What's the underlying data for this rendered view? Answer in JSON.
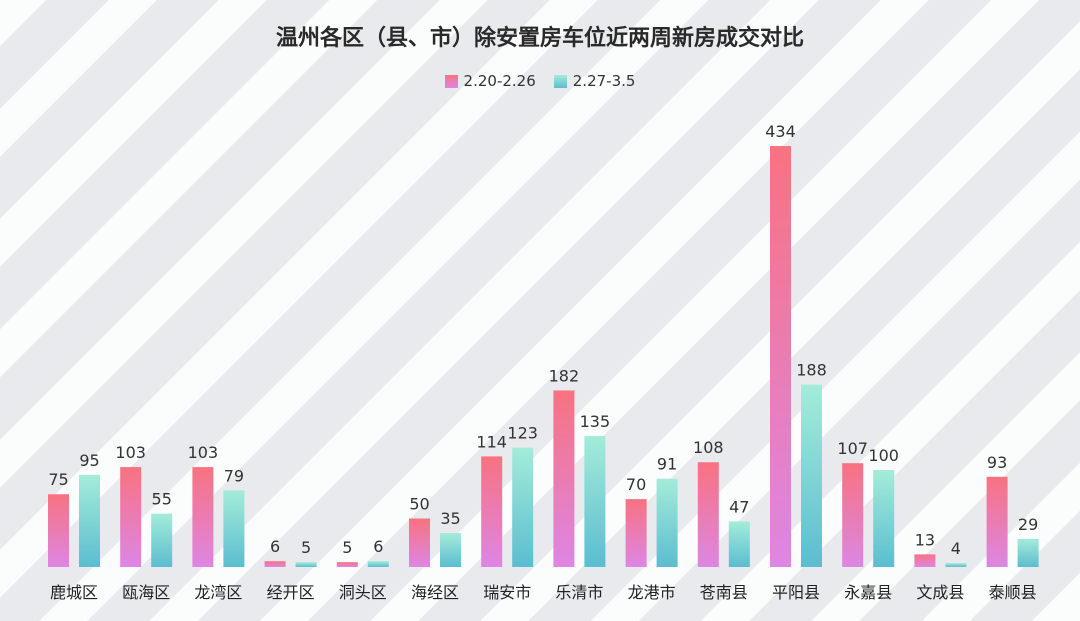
{
  "chart_data": {
    "type": "bar",
    "title": "温州各区（县、市）除安置房车位近两周新房成交对比",
    "categories": [
      "鹿城区",
      "瓯海区",
      "龙湾区",
      "经开区",
      "洞头区",
      "海经区",
      "瑞安市",
      "乐清市",
      "龙港市",
      "苍南县",
      "平阳县",
      "永嘉县",
      "文成县",
      "泰顺县"
    ],
    "series": [
      {
        "name": "2.20-2.26",
        "values": [
          75,
          103,
          103,
          6,
          5,
          50,
          114,
          182,
          70,
          108,
          434,
          107,
          13,
          93
        ],
        "color_top": "#f87280",
        "color_bottom": "#dd86e4"
      },
      {
        "name": "2.27-3.5",
        "values": [
          95,
          55,
          79,
          5,
          6,
          35,
          123,
          135,
          91,
          47,
          188,
          100,
          4,
          29
        ],
        "color_top": "#a4ecd9",
        "color_bottom": "#5bbdd0"
      }
    ],
    "ylim": [
      0,
      434
    ],
    "legend_position": "top-center",
    "grid": false
  }
}
